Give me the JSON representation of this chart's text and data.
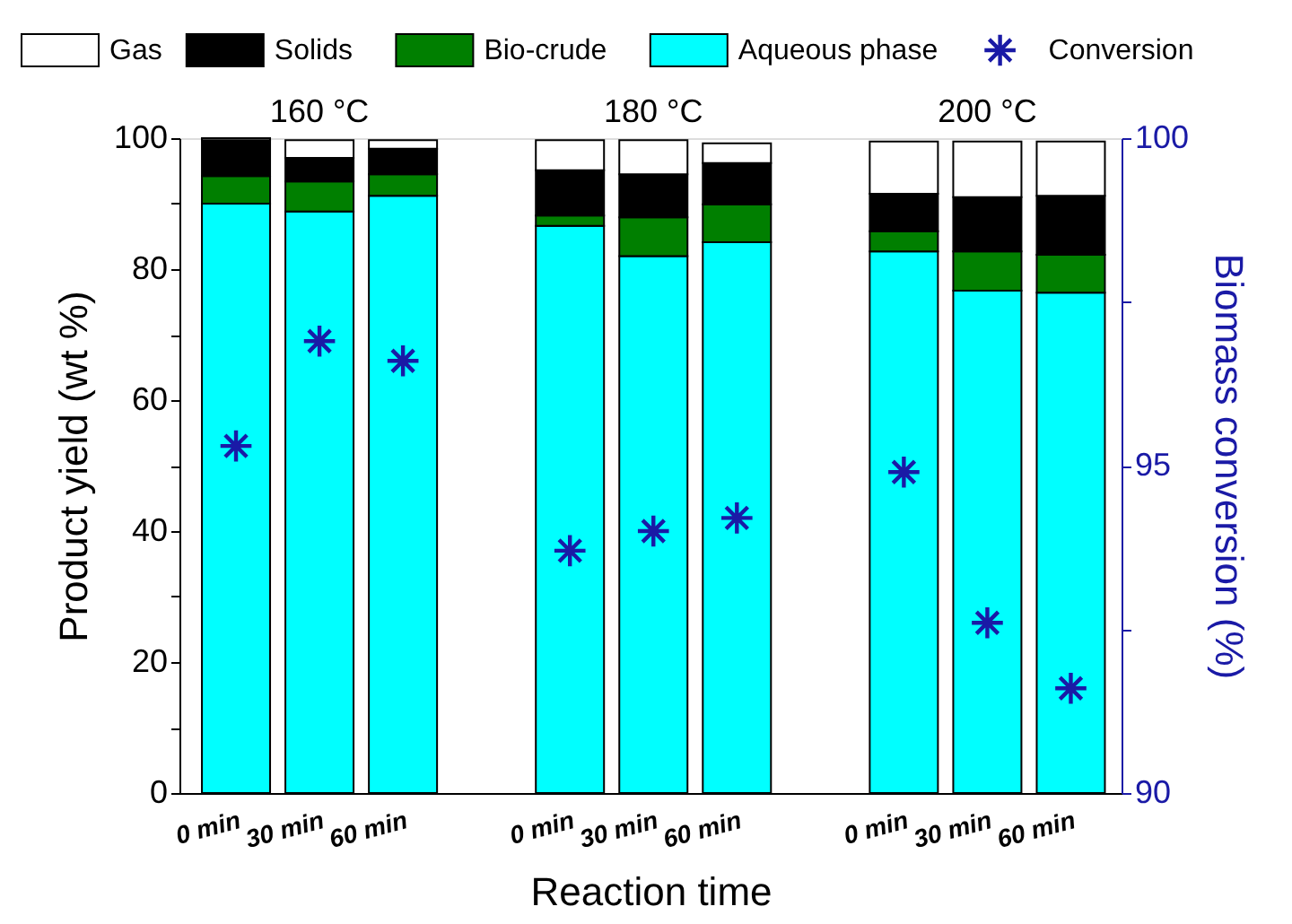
{
  "chart_data": {
    "type": "bar",
    "stacked": true,
    "categories": [
      "0 min",
      "30 min",
      "60 min",
      "0 min",
      "30 min",
      "60 min",
      "0 min",
      "30 min",
      "60 min"
    ],
    "series": [
      {
        "name": "Aqueous phase",
        "color": "#00ffff",
        "values": [
          90,
          88.8,
          91.2,
          86.6,
          82,
          84.1,
          82.7,
          76.7,
          76.4
        ]
      },
      {
        "name": "Bio-crude",
        "color": "#007f00",
        "values": [
          4.2,
          4.6,
          3.3,
          1.6,
          5.9,
          5.8,
          3.1,
          6,
          5.8
        ]
      },
      {
        "name": "Solids",
        "color": "#000000",
        "values": [
          5.5,
          3.6,
          3.9,
          6.9,
          6.6,
          6.3,
          5.7,
          8.3,
          9
        ]
      },
      {
        "name": "Gas",
        "color": "#ffffff",
        "values": [
          0.3,
          2.7,
          1.3,
          4.6,
          5.2,
          3,
          8,
          8.5,
          8.3
        ]
      },
      {
        "name": "Conversion",
        "type": "scatter",
        "axis": "y2",
        "marker": "cross",
        "color": "#1a1aa6",
        "values": [
          95.3,
          96.9,
          96.6,
          93.7,
          94,
          94.2,
          94.9,
          92.6,
          91.6
        ]
      }
    ],
    "xlabel": "Reaction time",
    "ylabel": "Product yield (wt %)",
    "y2label": "Biomass conversion (%)",
    "ylim": [
      0,
      100
    ],
    "yticks": [
      0,
      {
        "value": 10,
        "label": null
      },
      20,
      {
        "value": 30,
        "label": null
      },
      40,
      {
        "value": 50,
        "label": null
      },
      60,
      {
        "value": 70,
        "label": null
      },
      80,
      {
        "value": 90,
        "label": null
      },
      100
    ],
    "y2lim": [
      90,
      100
    ],
    "y2ticks": [
      90,
      {
        "value": 92.5,
        "label": null
      },
      95,
      {
        "value": 97.5,
        "label": null
      },
      100
    ],
    "annotations": [
      "160 °C",
      "180 °C",
      "200 °C"
    ],
    "legend": "top",
    "grid": false
  }
}
